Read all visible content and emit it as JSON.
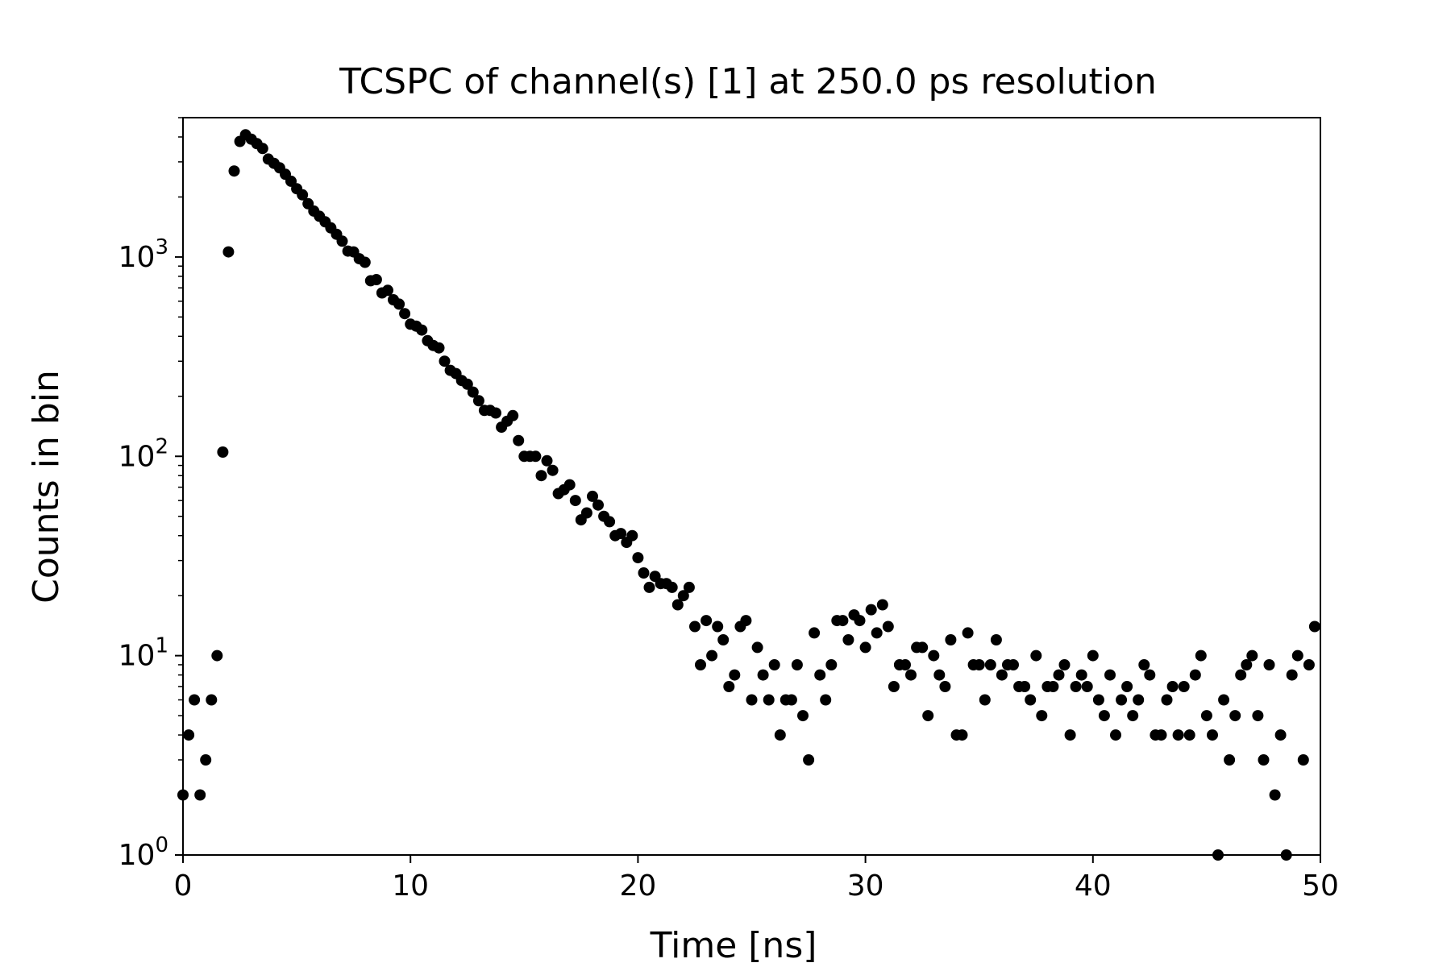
{
  "chart_data": {
    "type": "scatter",
    "title": "TCSPC of channel(s) [1] at 250.0 ps resolution",
    "xlabel": "Time [ns]",
    "ylabel": "Counts in bin",
    "xlim": [
      0,
      50
    ],
    "ylim": [
      1,
      5000
    ],
    "yscale": "log",
    "grid": false,
    "marker_color": "#000000",
    "xticks": [
      0,
      10,
      20,
      30,
      40,
      50
    ],
    "xtick_labels": [
      "0",
      "10",
      "20",
      "30",
      "40",
      "50"
    ],
    "yticks": [
      {
        "value": 1,
        "base": "10",
        "exp": "0"
      },
      {
        "value": 10,
        "base": "10",
        "exp": "1"
      },
      {
        "value": 100,
        "base": "10",
        "exp": "2"
      },
      {
        "value": 1000,
        "base": "10",
        "exp": "3"
      }
    ],
    "x_step": 0.25,
    "counts": [
      2,
      4,
      6,
      2,
      3,
      6,
      10,
      105,
      1060,
      2700,
      3800,
      4100,
      3900,
      3700,
      3500,
      3100,
      2950,
      2800,
      2600,
      2400,
      2200,
      2050,
      1850,
      1700,
      1600,
      1500,
      1400,
      1300,
      1200,
      1070,
      1060,
      980,
      940,
      760,
      770,
      660,
      680,
      610,
      580,
      520,
      460,
      450,
      430,
      380,
      360,
      350,
      300,
      270,
      260,
      240,
      230,
      210,
      190,
      170,
      170,
      165,
      140,
      150,
      160,
      120,
      100,
      100,
      100,
      80,
      95,
      85,
      65,
      68,
      72,
      60,
      48,
      52,
      63,
      57,
      50,
      47,
      40,
      41,
      37,
      40,
      31,
      26,
      22,
      25,
      23,
      23,
      22,
      18,
      20,
      22,
      14,
      9,
      15,
      10,
      14,
      12,
      7,
      8,
      14,
      15,
      6,
      11,
      8,
      6,
      9,
      4,
      6,
      6,
      9,
      5,
      3,
      13,
      8,
      6,
      9,
      15,
      15,
      12,
      16,
      15,
      11,
      17,
      13,
      18,
      14,
      7,
      9,
      9,
      8,
      11,
      11,
      5,
      10,
      8,
      7,
      12,
      4,
      4,
      13,
      9,
      9,
      6,
      9,
      12,
      8,
      9,
      9,
      7,
      7,
      6,
      10,
      5,
      7,
      7,
      8,
      9,
      4,
      7,
      8,
      7,
      10,
      6,
      5,
      8,
      4,
      6,
      7,
      5,
      6,
      9,
      8,
      4,
      4,
      6,
      7,
      4,
      7,
      4,
      8,
      10,
      5,
      4,
      1,
      6,
      3,
      5,
      8,
      9,
      10,
      5,
      3,
      9,
      2,
      4,
      1,
      8,
      10,
      3,
      9,
      14
    ]
  }
}
